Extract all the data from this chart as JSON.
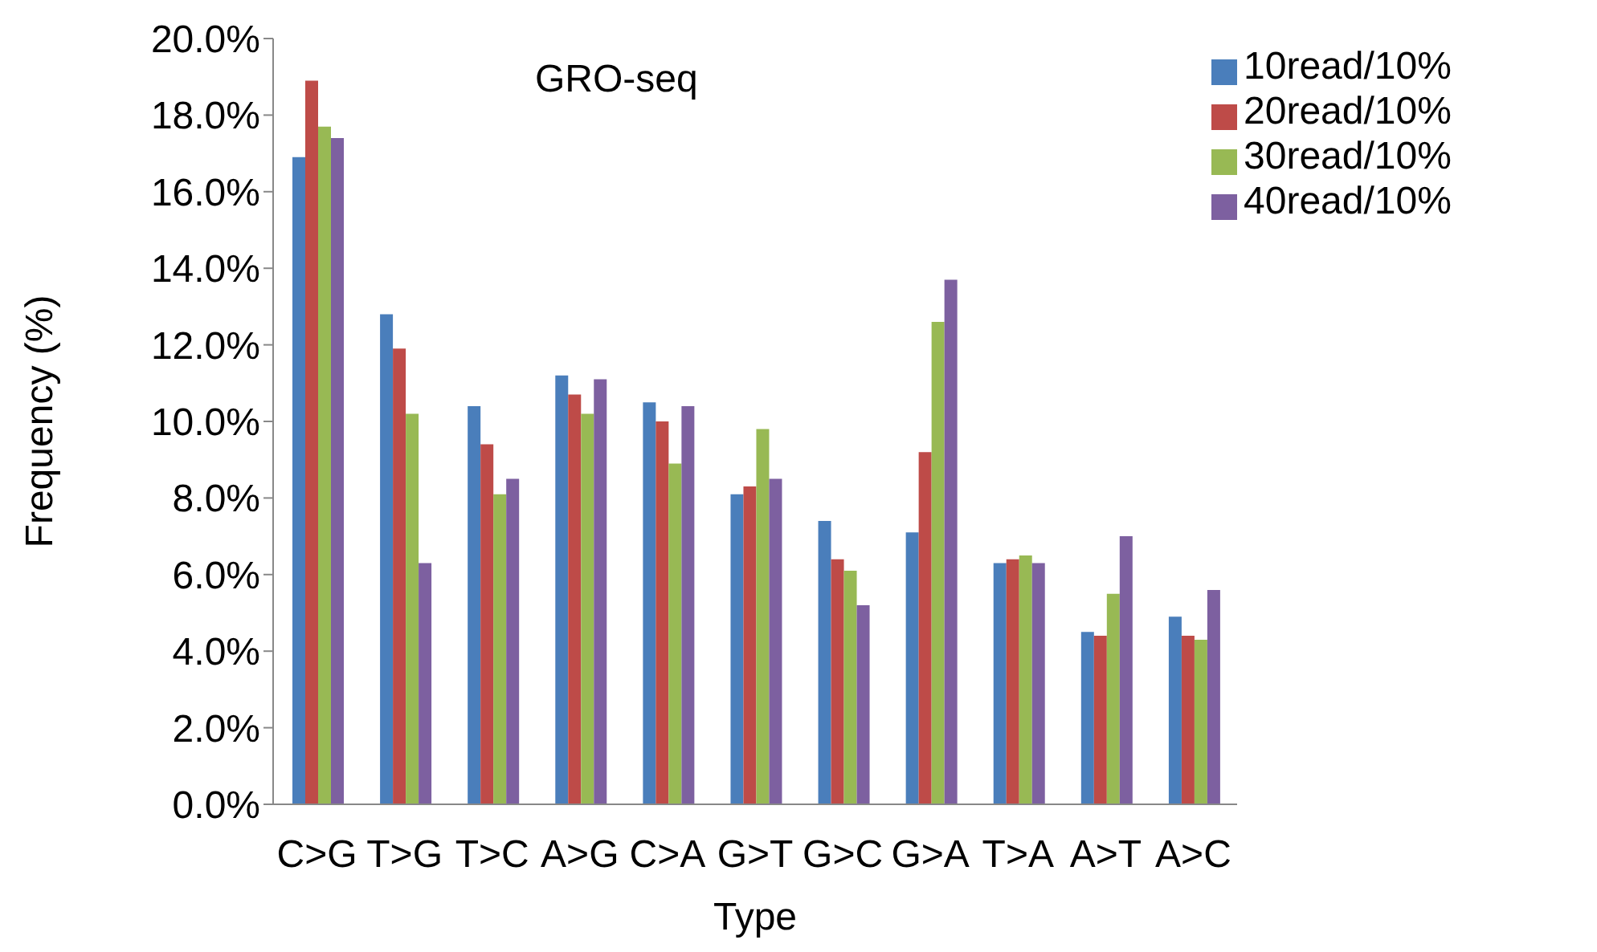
{
  "chart_data": {
    "type": "bar",
    "title": "GRO-seq",
    "xlabel": "Type",
    "ylabel": "Frequency (%)",
    "categories": [
      "C>G",
      "T>G",
      "T>C",
      "A>G",
      "C>A",
      "G>T",
      "G>C",
      "G>A",
      "T>A",
      "A>T",
      "A>C"
    ],
    "series": [
      {
        "name": "10read/10%",
        "color": "#4a7ebb",
        "values": [
          16.9,
          12.8,
          10.4,
          11.2,
          10.5,
          8.1,
          7.4,
          7.1,
          6.3,
          4.5,
          4.9
        ]
      },
      {
        "name": "20read/10%",
        "color": "#be4b48",
        "values": [
          18.9,
          11.9,
          9.4,
          10.7,
          10.0,
          8.3,
          6.4,
          9.2,
          6.4,
          4.4,
          4.4
        ]
      },
      {
        "name": "30read/10%",
        "color": "#98b954",
        "values": [
          17.7,
          10.2,
          8.1,
          10.2,
          8.9,
          9.8,
          6.1,
          12.6,
          6.5,
          5.5,
          4.3
        ]
      },
      {
        "name": "40read/10%",
        "color": "#7d60a0",
        "values": [
          17.4,
          6.3,
          8.5,
          11.1,
          10.4,
          8.5,
          5.2,
          13.7,
          6.3,
          7.0,
          5.6
        ]
      }
    ],
    "ylim": [
      0,
      20
    ],
    "yticks": [
      {
        "value": 0,
        "label": "0.0%"
      },
      {
        "value": 2,
        "label": "2.0%"
      },
      {
        "value": 4,
        "label": "4.0%"
      },
      {
        "value": 6,
        "label": "6.0%"
      },
      {
        "value": 8,
        "label": "8.0%"
      },
      {
        "value": 10,
        "label": "10.0%"
      },
      {
        "value": 12,
        "label": "12.0%"
      },
      {
        "value": 14,
        "label": "14.0%"
      },
      {
        "value": 16,
        "label": "16.0%"
      },
      {
        "value": 18,
        "label": "18.0%"
      },
      {
        "value": 20,
        "label": "20.0%"
      }
    ],
    "legend": "top right",
    "grid": false
  }
}
